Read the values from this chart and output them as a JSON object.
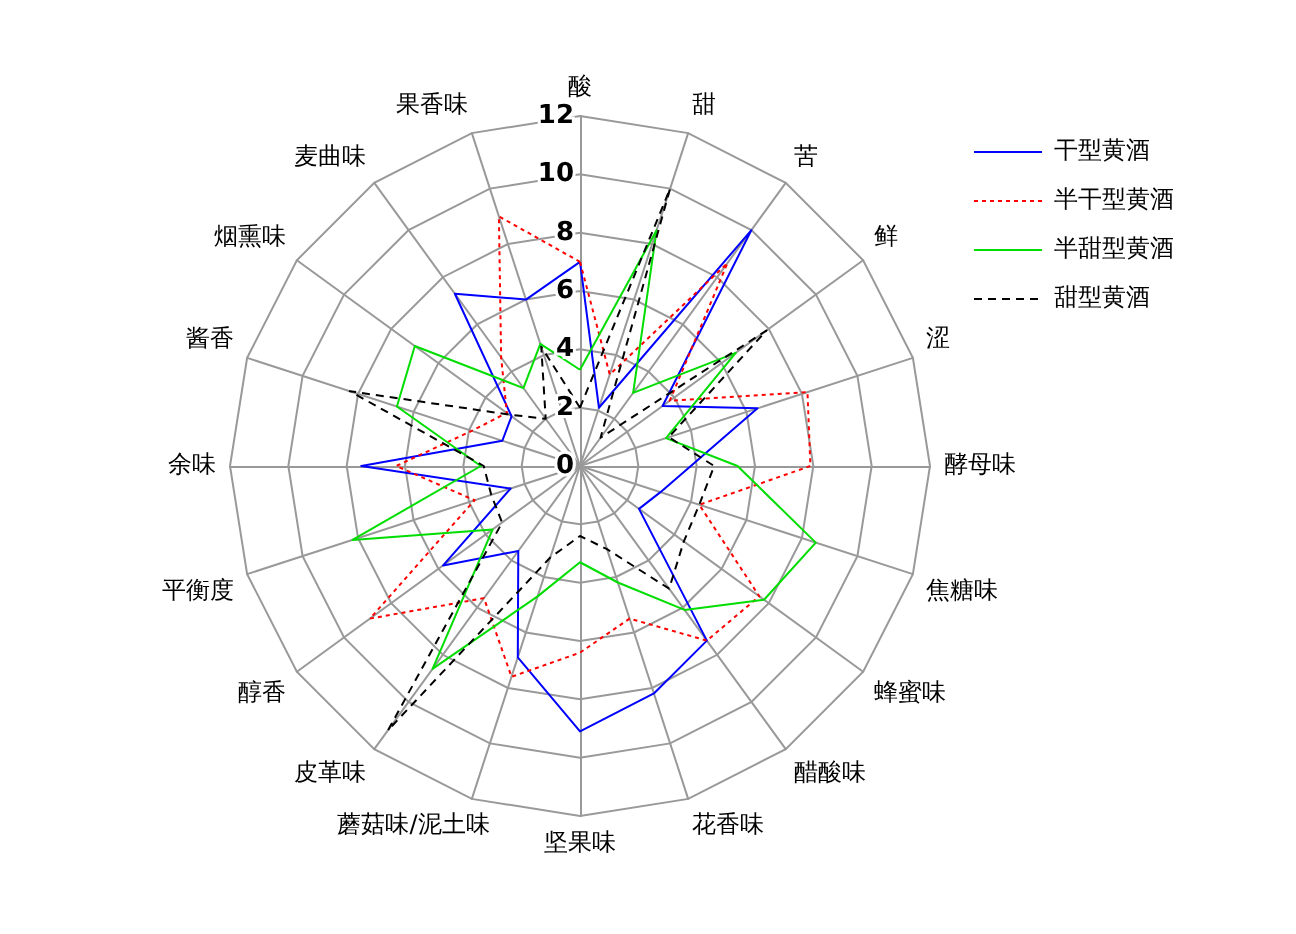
{
  "chart_data": {
    "type": "radar",
    "categories": [
      "酸",
      "甜",
      "苦",
      "鲜",
      "涩",
      "酵母味",
      "焦糖味",
      "蜂蜜味",
      "醋酸味",
      "花香味",
      "坚果味",
      "蘑菇味/泥土味",
      "皮革味",
      "醇香",
      "平衡度",
      "余味",
      "酱香",
      "烟熏味",
      "麦曲味",
      "果香味"
    ],
    "ylim": [
      0,
      12
    ],
    "yticks": [
      0,
      2,
      4,
      6,
      8,
      10,
      12
    ],
    "grid": true,
    "legend": "top right",
    "marker": "none",
    "series": [
      {
        "name": "干型黄酒",
        "color": "#0000ff",
        "line_style": "solid",
        "values": [
          7,
          2.1,
          10,
          3.5,
          6.4,
          3.8,
          2.9,
          2.5,
          7.4,
          8.2,
          9.1,
          6.9,
          3.6,
          5.8,
          2.5,
          7.5,
          2.8,
          2.9,
          7.3,
          6.0
        ]
      },
      {
        "name": "半干型黄酒",
        "color": "#ff0000",
        "line_style": "dotted",
        "values": [
          7,
          3.3,
          8.6,
          3.8,
          8.2,
          7.9,
          4.3,
          7.6,
          7.4,
          5.5,
          6.4,
          7.6,
          5.6,
          8.9,
          3.8,
          6.3,
          3.9,
          3.1,
          4.6,
          9.0
        ]
      },
      {
        "name": "半甜型黄酒",
        "color": "#00dd00",
        "line_style": "solid",
        "values": [
          3.3,
          8.5,
          3.1,
          6.6,
          3.1,
          5.4,
          8.5,
          7.8,
          6.1,
          4.2,
          3.3,
          4.7,
          8.6,
          3.7,
          8.2,
          3.4,
          6.6,
          7.0,
          3.3,
          4.4
        ]
      },
      {
        "name": "甜型黄酒",
        "color": "#000000",
        "line_style": "dashed",
        "values": [
          2.0,
          10,
          1.2,
          7.9,
          3.2,
          4.6,
          4.3,
          4.4,
          5.2,
          3.0,
          2.4,
          3.3,
          11.2,
          3.3,
          3.2,
          3.3,
          8.3,
          3.0,
          2.0,
          4.3
        ]
      }
    ]
  }
}
